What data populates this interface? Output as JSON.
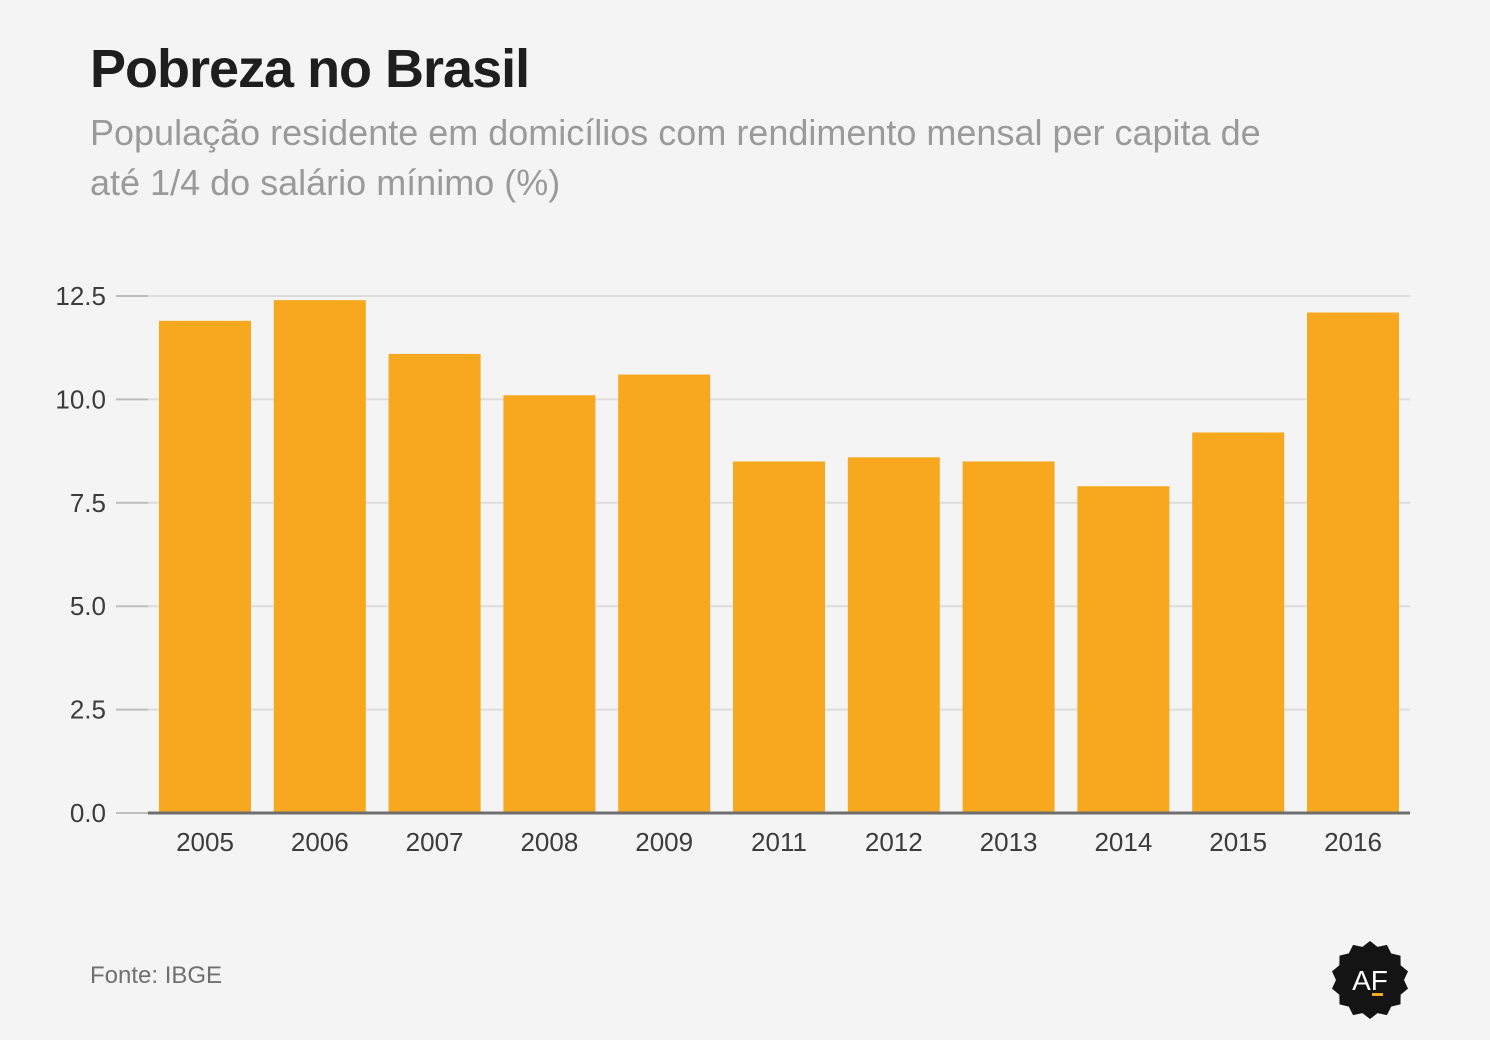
{
  "title": "Pobreza no Brasil",
  "subtitle": "População residente em domicílios com rendimento mensal per capita de até 1/4 do salário mínimo (%)",
  "source": "Fonte: IBGE",
  "logo": {
    "text": "AF",
    "icon": "af-seal-logo-icon"
  },
  "colors": {
    "bar": "#f8a81f",
    "grid": "#dcdcdc",
    "axis": "#6e6e6e",
    "background": "#f4f4f4"
  },
  "chart_data": {
    "type": "bar",
    "categories": [
      "2005",
      "2006",
      "2007",
      "2008",
      "2009",
      "2011",
      "2012",
      "2013",
      "2014",
      "2015",
      "2016"
    ],
    "values": [
      11.9,
      12.4,
      11.1,
      10.1,
      10.6,
      8.5,
      8.6,
      8.5,
      7.9,
      9.2,
      12.1
    ],
    "y_ticks": [
      "0.0",
      "2.5",
      "5.0",
      "7.5",
      "10.0",
      "12.5"
    ],
    "ylim": [
      0,
      12.5
    ],
    "xlabel": "",
    "ylabel": "",
    "grid": true,
    "legend": "none"
  }
}
